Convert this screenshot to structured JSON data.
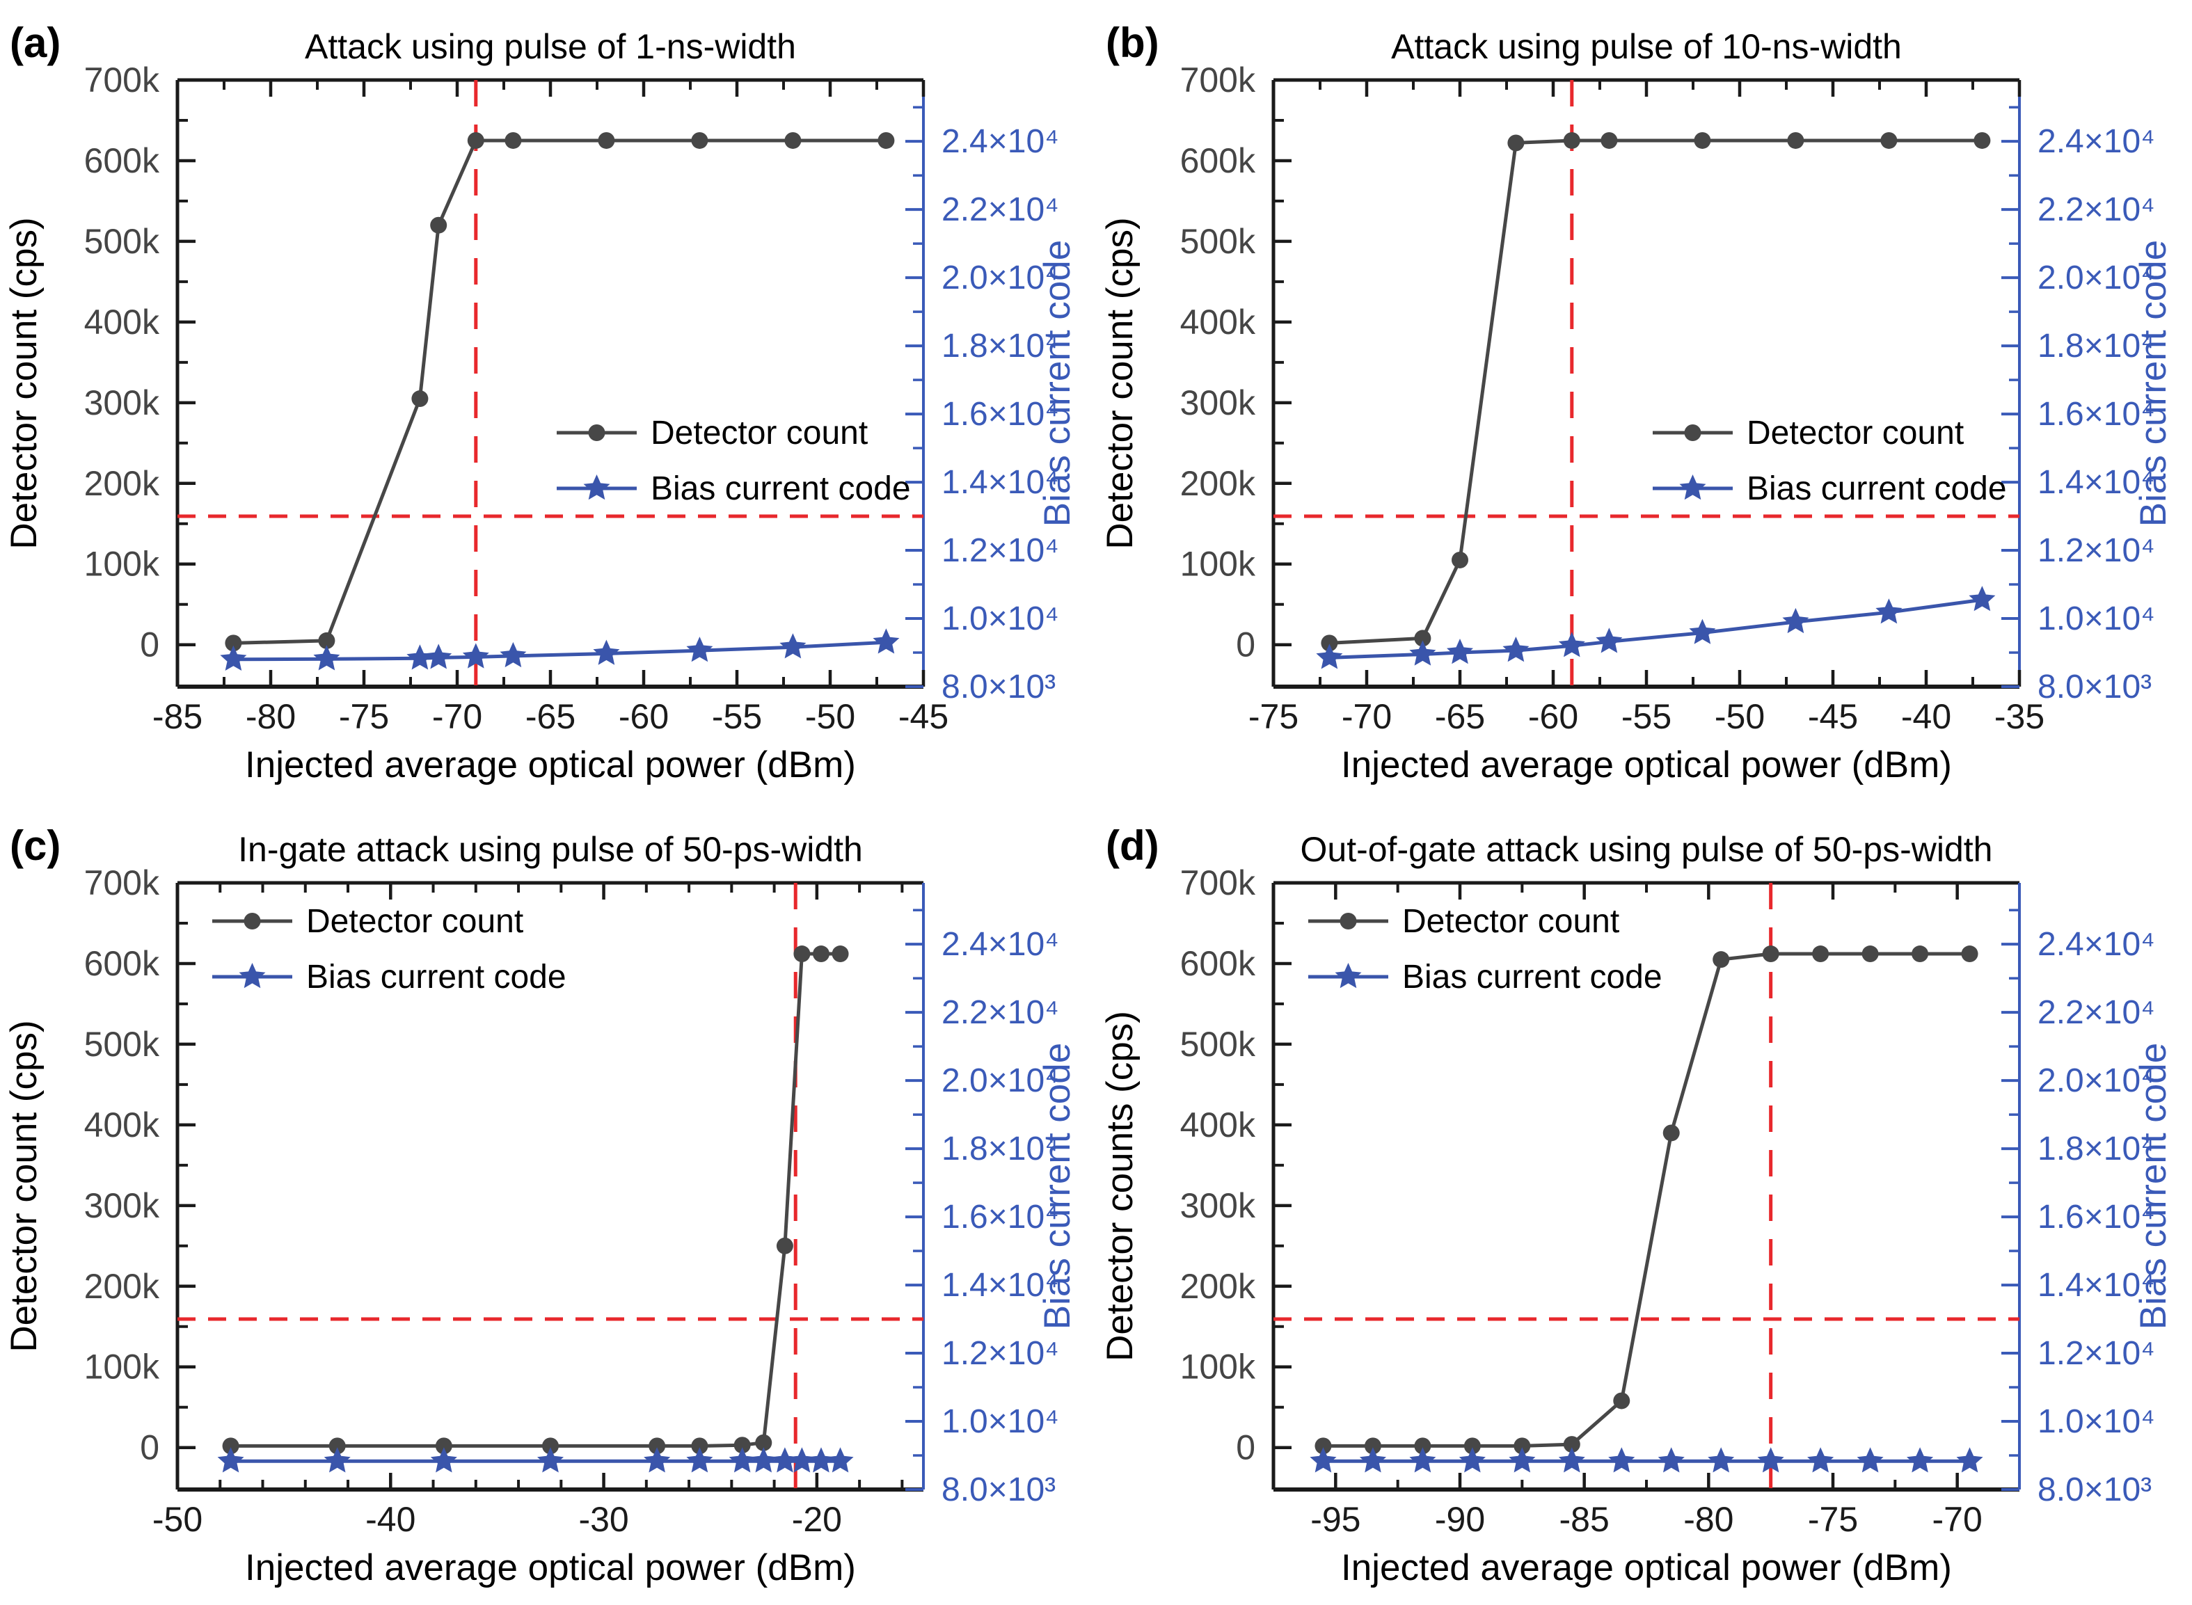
{
  "colors": {
    "detector_series": "#474747",
    "bias_series": "#3a55ab",
    "red_dashed": "#e8282c",
    "axis_black": "#1a1a1a",
    "left_tick_label": "#454545",
    "right_axis_blue": "#3a5ab8",
    "background": "#ffffff"
  },
  "axes": {
    "y_left_ticks": [
      {
        "value": 0,
        "label": "0"
      },
      {
        "value": 100000,
        "label": "100k"
      },
      {
        "value": 200000,
        "label": "200k"
      },
      {
        "value": 300000,
        "label": "300k"
      },
      {
        "value": 400000,
        "label": "400k"
      },
      {
        "value": 500000,
        "label": "500k"
      },
      {
        "value": 600000,
        "label": "600k"
      },
      {
        "value": 700000,
        "label": "700k"
      }
    ],
    "y_left_minor": [
      50000,
      150000,
      250000,
      350000,
      450000,
      550000,
      650000
    ],
    "y_right_ticks": [
      {
        "value": 8000,
        "label": "8.0×10³"
      },
      {
        "value": 10000,
        "label": "1.0×10⁴"
      },
      {
        "value": 12000,
        "label": "1.2×10⁴"
      },
      {
        "value": 14000,
        "label": "1.4×10⁴"
      },
      {
        "value": 16000,
        "label": "1.6×10⁴"
      },
      {
        "value": 18000,
        "label": "1.8×10⁴"
      },
      {
        "value": 20000,
        "label": "2.0×10⁴"
      },
      {
        "value": 22000,
        "label": "2.2×10⁴"
      },
      {
        "value": 24000,
        "label": "2.4×10⁴"
      }
    ],
    "y_right_minor": [
      9000,
      11000,
      13000,
      15000,
      17000,
      19000,
      21000,
      23000,
      25000
    ]
  },
  "chart_data": [
    {
      "id": "a",
      "panel_label": "(a)",
      "type": "line",
      "title": "Attack using pulse of 1-ns-width",
      "xlabel": "Injected average optical power (dBm)",
      "ylabel_left": "Detector count (cps)",
      "ylabel_right": "Bias current code",
      "xlim": [
        -85,
        -45
      ],
      "x_major_ticks": [
        -85,
        -80,
        -75,
        -70,
        -65,
        -60,
        -55,
        -50,
        -45
      ],
      "x_tick_labels": [
        "-85",
        "-80",
        "-75",
        "-70",
        "-65",
        "-60",
        "-55",
        "-50",
        "-45"
      ],
      "x_minor_ticks": [
        -82.5,
        -77.5,
        -72.5,
        -67.5,
        -62.5,
        -57.5,
        -52.5,
        -47.5
      ],
      "ylim_left": [
        -52000,
        700000
      ],
      "ylim_right": [
        8000,
        25800
      ],
      "legend_pos": "mid-right",
      "red_dashed": {
        "v_line_x": -69,
        "h_line_bias_code": 13000
      },
      "series": [
        {
          "name": "Detector count",
          "axis": "left",
          "marker": "circle",
          "color": "#474747",
          "x": [
            -82,
            -77,
            -72,
            -71,
            -69,
            -67,
            -62,
            -57,
            -52,
            -47
          ],
          "y": [
            2000,
            5000,
            305000,
            520000,
            625000,
            625000,
            625000,
            625000,
            625000,
            625000
          ]
        },
        {
          "name": "Bias current code",
          "axis": "right",
          "marker": "star",
          "color": "#3a55ab",
          "x": [
            -82,
            -77,
            -72,
            -71,
            -69,
            -67,
            -62,
            -57,
            -52,
            -47
          ],
          "y": [
            8800,
            8810,
            8830,
            8850,
            8870,
            8900,
            8970,
            9060,
            9160,
            9300
          ]
        }
      ]
    },
    {
      "id": "b",
      "panel_label": "(b)",
      "type": "line",
      "title": "Attack using pulse of 10-ns-width",
      "xlabel": "Injected average optical power (dBm)",
      "ylabel_left": "Detector count (cps)",
      "ylabel_right": "Bias current code",
      "xlim": [
        -75,
        -35
      ],
      "x_major_ticks": [
        -75,
        -70,
        -65,
        -60,
        -55,
        -50,
        -45,
        -40,
        -35
      ],
      "x_tick_labels": [
        "-75",
        "-70",
        "-65",
        "-60",
        "-55",
        "-50",
        "-45",
        "-40",
        "-35"
      ],
      "x_minor_ticks": [
        -72.5,
        -67.5,
        -62.5,
        -57.5,
        -52.5,
        -47.5,
        -42.5,
        -37.5
      ],
      "ylim_left": [
        -52000,
        700000
      ],
      "ylim_right": [
        8000,
        25800
      ],
      "legend_pos": "mid-right",
      "red_dashed": {
        "v_line_x": -59,
        "h_line_bias_code": 13000
      },
      "series": [
        {
          "name": "Detector count",
          "axis": "left",
          "marker": "circle",
          "color": "#474747",
          "x": [
            -72,
            -67,
            -65,
            -62,
            -59,
            -57,
            -52,
            -47,
            -42,
            -37
          ],
          "y": [
            2000,
            8000,
            105000,
            622000,
            625000,
            625000,
            625000,
            625000,
            625000,
            625000
          ]
        },
        {
          "name": "Bias current code",
          "axis": "right",
          "marker": "star",
          "color": "#3a55ab",
          "x": [
            -72,
            -67,
            -65,
            -62,
            -59,
            -57,
            -52,
            -47,
            -42,
            -37
          ],
          "y": [
            8850,
            8950,
            9000,
            9060,
            9200,
            9320,
            9580,
            9900,
            10180,
            10550
          ]
        }
      ]
    },
    {
      "id": "c",
      "panel_label": "(c)",
      "type": "line",
      "title": "In-gate attack using pulse of 50-ps-width",
      "xlabel": "Injected average optical power (dBm)",
      "ylabel_left": "Detector count (cps)",
      "ylabel_right": "Bias current code",
      "xlim": [
        -50,
        -15
      ],
      "x_major_ticks": [
        -50,
        -40,
        -30,
        -20
      ],
      "x_tick_labels": [
        "-50",
        "-40",
        "-30",
        "-20"
      ],
      "x_minor_ticks": [
        -48,
        -46,
        -44,
        -42,
        -38,
        -36,
        -34,
        -32,
        -28,
        -26,
        -24,
        -22,
        -18,
        -16
      ],
      "ylim_left": [
        -52000,
        700000
      ],
      "ylim_right": [
        8000,
        25800
      ],
      "legend_pos": "top-left",
      "red_dashed": {
        "v_line_x": -21,
        "h_line_bias_code": 13000
      },
      "series": [
        {
          "name": "Detector count",
          "axis": "left",
          "marker": "circle",
          "color": "#474747",
          "x": [
            -47.5,
            -42.5,
            -37.5,
            -32.5,
            -27.5,
            -25.5,
            -23.5,
            -22.5,
            -21.5,
            -20.7,
            -19.8,
            -18.9
          ],
          "y": [
            2000,
            2000,
            2000,
            2000,
            2000,
            2000,
            3000,
            6000,
            250000,
            612000,
            612000,
            612000
          ]
        },
        {
          "name": "Bias current code",
          "axis": "right",
          "marker": "star",
          "color": "#3a55ab",
          "x": [
            -47.5,
            -42.5,
            -37.5,
            -32.5,
            -27.5,
            -25.5,
            -23.5,
            -22.5,
            -21.5,
            -20.7,
            -19.8,
            -18.9
          ],
          "y": [
            8830,
            8830,
            8830,
            8830,
            8830,
            8830,
            8830,
            8830,
            8830,
            8830,
            8830,
            8830
          ]
        }
      ]
    },
    {
      "id": "d",
      "panel_label": "(d)",
      "type": "line",
      "title": "Out-of-gate attack using pulse of 50-ps-width",
      "xlabel": "Injected average optical power (dBm)",
      "ylabel_left": "Detector counts (cps)",
      "ylabel_right": "Bias current code",
      "xlim": [
        -97.5,
        -67.5
      ],
      "x_major_ticks": [
        -95,
        -90,
        -85,
        -80,
        -75,
        -70
      ],
      "x_tick_labels": [
        "-95",
        "-90",
        "-85",
        "-80",
        "-75",
        "-70"
      ],
      "x_minor_ticks": [
        -92.5,
        -87.5,
        -82.5,
        -77.5,
        -72.5
      ],
      "ylim_left": [
        -52000,
        700000
      ],
      "ylim_right": [
        8000,
        25800
      ],
      "legend_pos": "top-left",
      "red_dashed": {
        "v_line_x": -77.5,
        "h_line_bias_code": 13000
      },
      "series": [
        {
          "name": "Detector count",
          "axis": "left",
          "marker": "circle",
          "color": "#474747",
          "x": [
            -95.5,
            -93.5,
            -91.5,
            -89.5,
            -87.5,
            -85.5,
            -83.5,
            -81.5,
            -79.5,
            -77.5,
            -75.5,
            -73.5,
            -71.5,
            -69.5
          ],
          "y": [
            2000,
            2000,
            2000,
            2000,
            2000,
            4000,
            58000,
            390000,
            605000,
            612000,
            612000,
            612000,
            612000,
            612000
          ]
        },
        {
          "name": "Bias current code",
          "axis": "right",
          "marker": "star",
          "color": "#3a55ab",
          "x": [
            -95.5,
            -93.5,
            -91.5,
            -89.5,
            -87.5,
            -85.5,
            -83.5,
            -81.5,
            -79.5,
            -77.5,
            -75.5,
            -73.5,
            -71.5,
            -69.5
          ],
          "y": [
            8830,
            8830,
            8830,
            8830,
            8830,
            8830,
            8830,
            8830,
            8830,
            8830,
            8830,
            8830,
            8830,
            8830
          ]
        }
      ]
    }
  ]
}
